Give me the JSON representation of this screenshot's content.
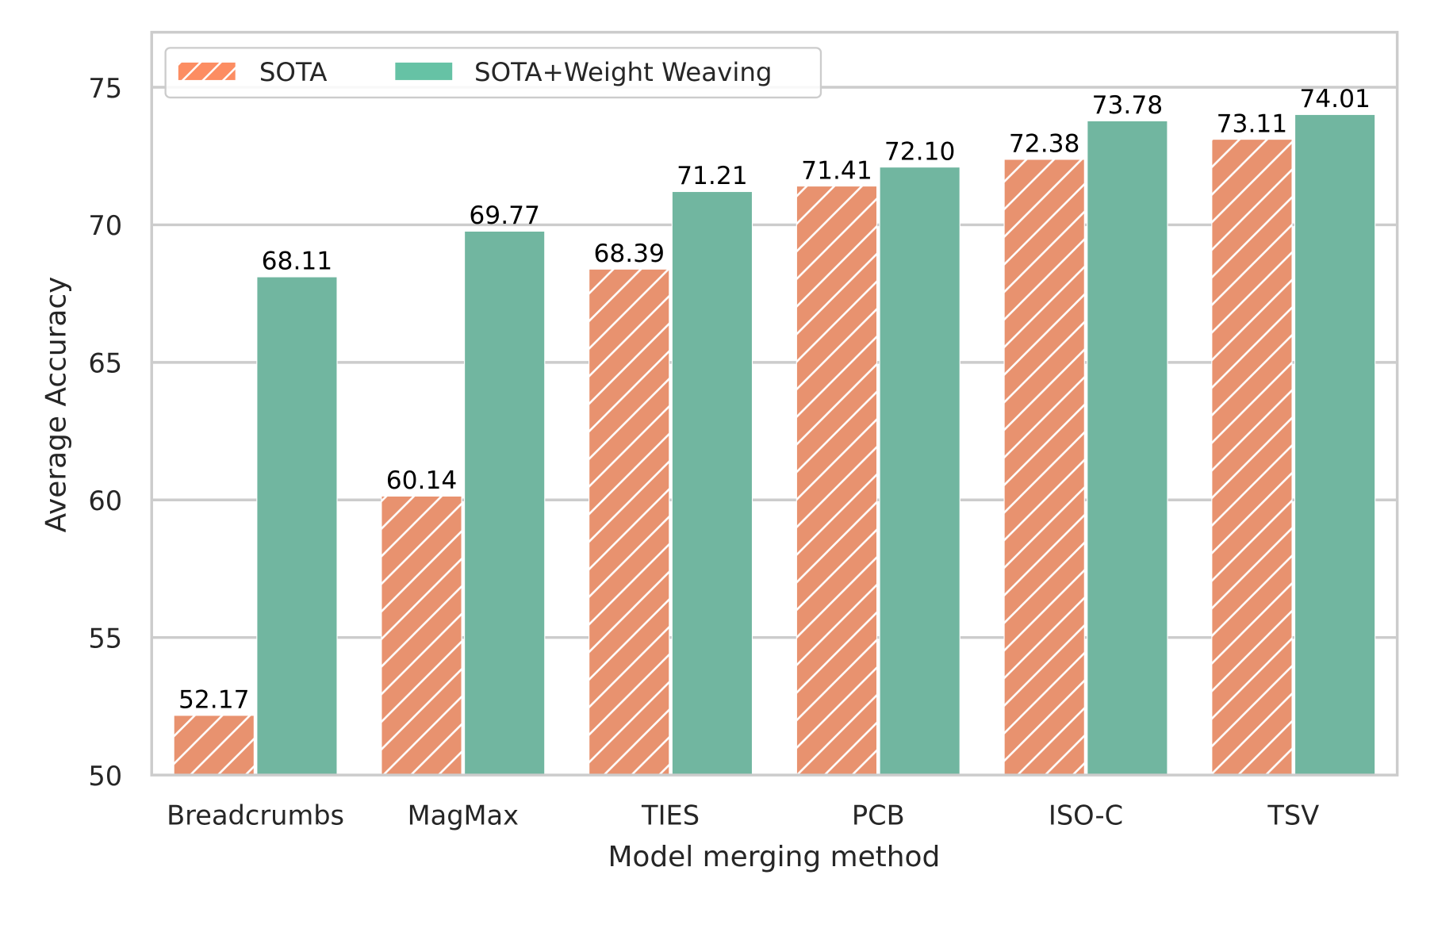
{
  "chart_data": {
    "type": "bar",
    "title": "",
    "xlabel": "Model merging method",
    "ylabel": "Average Accuracy",
    "ylim": [
      50,
      77
    ],
    "yticks": [
      50,
      55,
      60,
      65,
      70,
      75
    ],
    "grid": true,
    "legend_position": "top-left",
    "categories": [
      "Breadcrumbs",
      "MagMax",
      "TIES",
      "PCB",
      "ISO-C",
      "TSV"
    ],
    "series": [
      {
        "name": "SOTA",
        "color": "#e8926f",
        "hatch": "diagonal",
        "values": [
          52.17,
          60.14,
          68.39,
          71.41,
          72.38,
          73.11
        ],
        "labels": [
          "52.17",
          "60.14",
          "68.39",
          "71.41",
          "72.38",
          "73.11"
        ]
      },
      {
        "name": "SOTA+Weight Weaving",
        "color": "#71b6a0",
        "hatch": "none",
        "values": [
          68.11,
          69.77,
          71.21,
          72.1,
          73.78,
          74.01
        ],
        "labels": [
          "68.11",
          "69.77",
          "71.21",
          "72.10",
          "73.78",
          "74.01"
        ]
      }
    ]
  },
  "colors": {
    "legend_sota_swatch": "#fc8d62",
    "legend_weave_swatch": "#66c2a5",
    "spine": "#cccccc",
    "grid": "#cccccc"
  }
}
